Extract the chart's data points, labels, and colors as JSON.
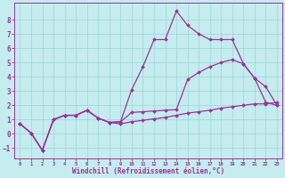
{
  "xlabel": "Windchill (Refroidissement éolien,°C)",
  "xlim": [
    -0.5,
    23.5
  ],
  "ylim": [
    -1.7,
    9.2
  ],
  "yticks": [
    -1,
    0,
    1,
    2,
    3,
    4,
    5,
    6,
    7,
    8
  ],
  "xticks": [
    0,
    1,
    2,
    3,
    4,
    5,
    6,
    7,
    8,
    9,
    10,
    11,
    12,
    13,
    14,
    15,
    16,
    17,
    18,
    19,
    20,
    21,
    22,
    23
  ],
  "bg_color": "#c5ecee",
  "grid_color": "#9dd4d8",
  "line_color": "#993399",
  "markersize": 2.0,
  "line_width": 0.9,
  "line1_x": [
    0,
    1,
    2,
    3,
    4,
    5,
    6,
    7,
    8,
    9,
    10,
    11,
    12,
    13,
    14,
    15,
    16,
    17,
    18,
    19,
    20,
    21,
    22,
    23
  ],
  "line1_y": [
    0.7,
    0.05,
    -1.15,
    1.0,
    1.3,
    1.3,
    1.65,
    1.1,
    0.8,
    0.7,
    0.85,
    0.95,
    1.05,
    1.15,
    1.3,
    1.45,
    1.55,
    1.65,
    1.8,
    1.9,
    2.0,
    2.1,
    2.1,
    2.2
  ],
  "line2_x": [
    0,
    1,
    2,
    3,
    4,
    5,
    6,
    7,
    8,
    9,
    10,
    11,
    12,
    13,
    14,
    15,
    16,
    17,
    18,
    19,
    20,
    21,
    22,
    23
  ],
  "line2_y": [
    0.7,
    0.05,
    -1.15,
    1.0,
    1.3,
    1.3,
    1.65,
    1.1,
    0.8,
    0.85,
    3.1,
    4.7,
    6.6,
    6.6,
    8.6,
    7.6,
    7.0,
    6.6,
    6.6,
    6.6,
    4.9,
    3.9,
    3.3,
    2.0
  ],
  "line3_x": [
    0,
    1,
    2,
    3,
    4,
    5,
    6,
    7,
    8,
    9,
    10,
    11,
    12,
    13,
    14,
    15,
    16,
    17,
    18,
    19,
    20,
    21,
    22,
    23
  ],
  "line3_y": [
    0.7,
    0.05,
    -1.15,
    1.0,
    1.3,
    1.3,
    1.65,
    1.1,
    0.8,
    0.85,
    1.5,
    1.55,
    1.6,
    1.65,
    1.7,
    3.8,
    4.3,
    4.7,
    5.0,
    5.2,
    4.9,
    3.9,
    2.2,
    2.0
  ]
}
